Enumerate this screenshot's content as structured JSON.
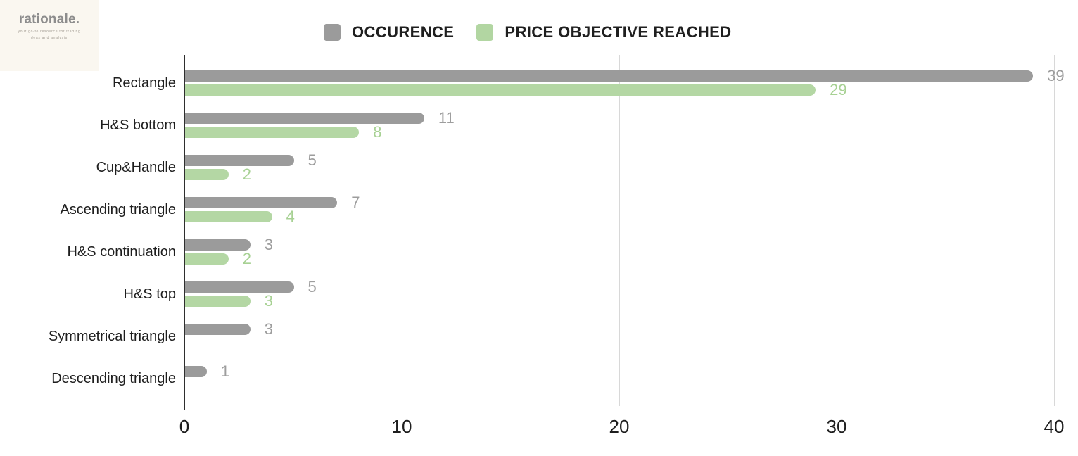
{
  "logo": {
    "brand": "rationale.",
    "tagline_line1": "your go-to resource for trading",
    "tagline_line2": "ideas and analysis."
  },
  "legend": {
    "items": [
      {
        "label": "OCCURENCE",
        "color": "#9b9b9b"
      },
      {
        "label": "PRICE OBJECTIVE REACHED",
        "color": "#b2d6a2"
      }
    ]
  },
  "chart_data": {
    "type": "bar",
    "orientation": "horizontal",
    "title": "",
    "xlabel": "",
    "ylabel": "",
    "categories": [
      "Rectangle",
      "H&S bottom",
      "Cup&Handle",
      "Ascending triangle",
      "H&S continuation",
      "H&S top",
      "Symmetrical triangle",
      "Descending triangle"
    ],
    "series": [
      {
        "name": "OCCURENCE",
        "bar_color": "#9b9b9b",
        "label_color": "#9d9d9d",
        "values": [
          39,
          11,
          5,
          7,
          3,
          5,
          3,
          1
        ]
      },
      {
        "name": "PRICE OBJECTIVE REACHED",
        "bar_color": "#b4d7a4",
        "label_color": "#a7d193",
        "values": [
          29,
          8,
          2,
          4,
          2,
          3,
          0,
          0
        ]
      }
    ],
    "xlim": [
      0,
      40
    ],
    "xticks": [
      0,
      10,
      20,
      30,
      40
    ],
    "grid": true,
    "legend_position": "top",
    "value_labels": true,
    "zero_values_hidden": true
  },
  "colors": {
    "background": "#ffffff",
    "logo_background": "#faf7f0",
    "axis": "#2e2e2e",
    "gridline": "#d8d8d8",
    "tick_label": "#1e1e1e",
    "category_label": "#1e1e1e",
    "legend_text": "#1f1f1f",
    "brand_text": "#8d8d8d"
  }
}
